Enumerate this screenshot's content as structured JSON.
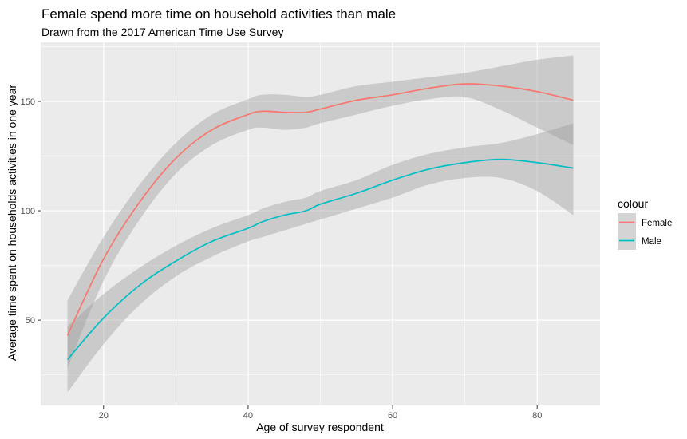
{
  "chart_data": {
    "type": "line",
    "title": "Female spend more time on household activities than male",
    "subtitle": "Drawn from the 2017 American Time Use Survey",
    "xlabel": "Age of survey respondent",
    "ylabel": "Average time spent on households activities in one year",
    "xlim": [
      11.3,
      88.7
    ],
    "ylim": [
      11,
      177
    ],
    "x_ticks": [
      20,
      40,
      60,
      80
    ],
    "y_ticks": [
      50,
      100,
      150
    ],
    "grid": true,
    "legend": {
      "title": "colour",
      "position": "right"
    },
    "x": [
      15,
      20,
      25,
      30,
      35,
      40,
      42,
      45,
      48,
      50,
      55,
      60,
      65,
      70,
      75,
      80,
      85
    ],
    "series": [
      {
        "name": "Female",
        "color": "#F8766D",
        "values": [
          43,
          78,
          104,
          124,
          137,
          144,
          145.5,
          145,
          145,
          146.5,
          150.5,
          153,
          156,
          158,
          157,
          154.5,
          150.5
        ],
        "ci_lower": [
          28,
          68,
          96,
          117,
          130,
          137,
          138,
          137,
          138,
          140,
          144,
          148,
          151,
          152,
          146,
          138,
          130
        ],
        "ci_upper": [
          59,
          88,
          112,
          131,
          144,
          151,
          153,
          153,
          152,
          153,
          157,
          159,
          161,
          163,
          166,
          169,
          171
        ]
      },
      {
        "name": "Male",
        "color": "#00BFC4",
        "values": [
          32,
          51,
          66,
          77,
          86,
          92,
          95,
          98,
          100,
          103,
          108,
          114,
          119,
          122,
          123.5,
          122,
          119.5
        ],
        "ci_lower": [
          17,
          39,
          57,
          70,
          79,
          86,
          88,
          91,
          94,
          96,
          101,
          106,
          112,
          115,
          115,
          109,
          98
        ],
        "ci_upper": [
          47,
          62,
          74,
          84,
          92,
          98,
          101,
          104,
          106,
          109,
          114,
          121,
          126,
          129,
          131,
          135,
          140
        ]
      }
    ]
  }
}
